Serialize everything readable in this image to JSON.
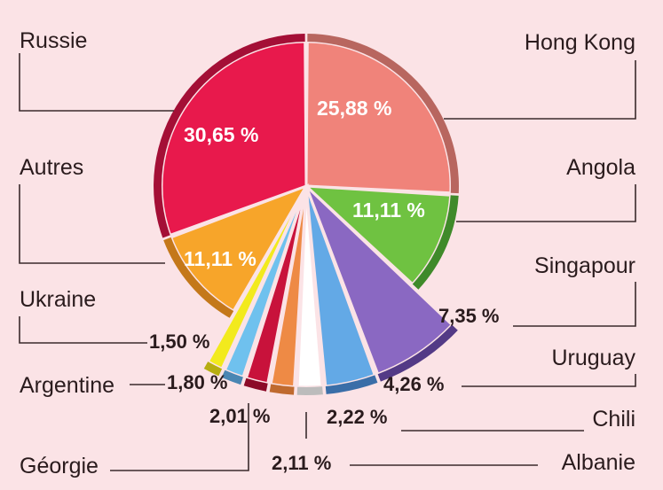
{
  "chart_data": {
    "type": "pie",
    "title": "",
    "slices": [
      {
        "name": "Hong Kong",
        "value": 25.88,
        "label": "25,88 %",
        "color": "#f0837a",
        "rim": "#b8665f"
      },
      {
        "name": "Angola",
        "value": 11.11,
        "label": "11,11 %",
        "color": "#6fc241",
        "rim": "#3f8a2a"
      },
      {
        "name": "Singapour",
        "value": 7.35,
        "label": "7,35 %",
        "color": "#8a68c2",
        "rim": "#533a86"
      },
      {
        "name": "Uruguay",
        "value": 4.26,
        "label": "4,26 %",
        "color": "#63a9e6",
        "rim": "#3a6ea8"
      },
      {
        "name": "Chili",
        "value": 2.22,
        "label": "2,22 %",
        "color": "#ffffff",
        "rim": "#bcbcbc"
      },
      {
        "name": "Albanie",
        "value": 2.11,
        "label": "2,11 %",
        "color": "#ee8a45",
        "rim": "#bf6a2f"
      },
      {
        "name": "Géorgie",
        "value": 2.01,
        "label": "2,01 %",
        "color": "#c8123b",
        "rim": "#8c0b28"
      },
      {
        "name": "Argentine",
        "value": 1.8,
        "label": "1,80 %",
        "color": "#6fc1ee",
        "rim": "#4a86b3"
      },
      {
        "name": "Ukraine",
        "value": 1.5,
        "label": "1,50 %",
        "color": "#f2ea1d",
        "rim": "#b6ad10"
      },
      {
        "name": "Autres",
        "value": 11.11,
        "label": "11,11 %",
        "color": "#f7a52a",
        "rim": "#c4781a"
      },
      {
        "name": "Russie",
        "value": 30.65,
        "label": "30,65 %",
        "color": "#e8194c",
        "rim": "#a40f36"
      }
    ]
  }
}
